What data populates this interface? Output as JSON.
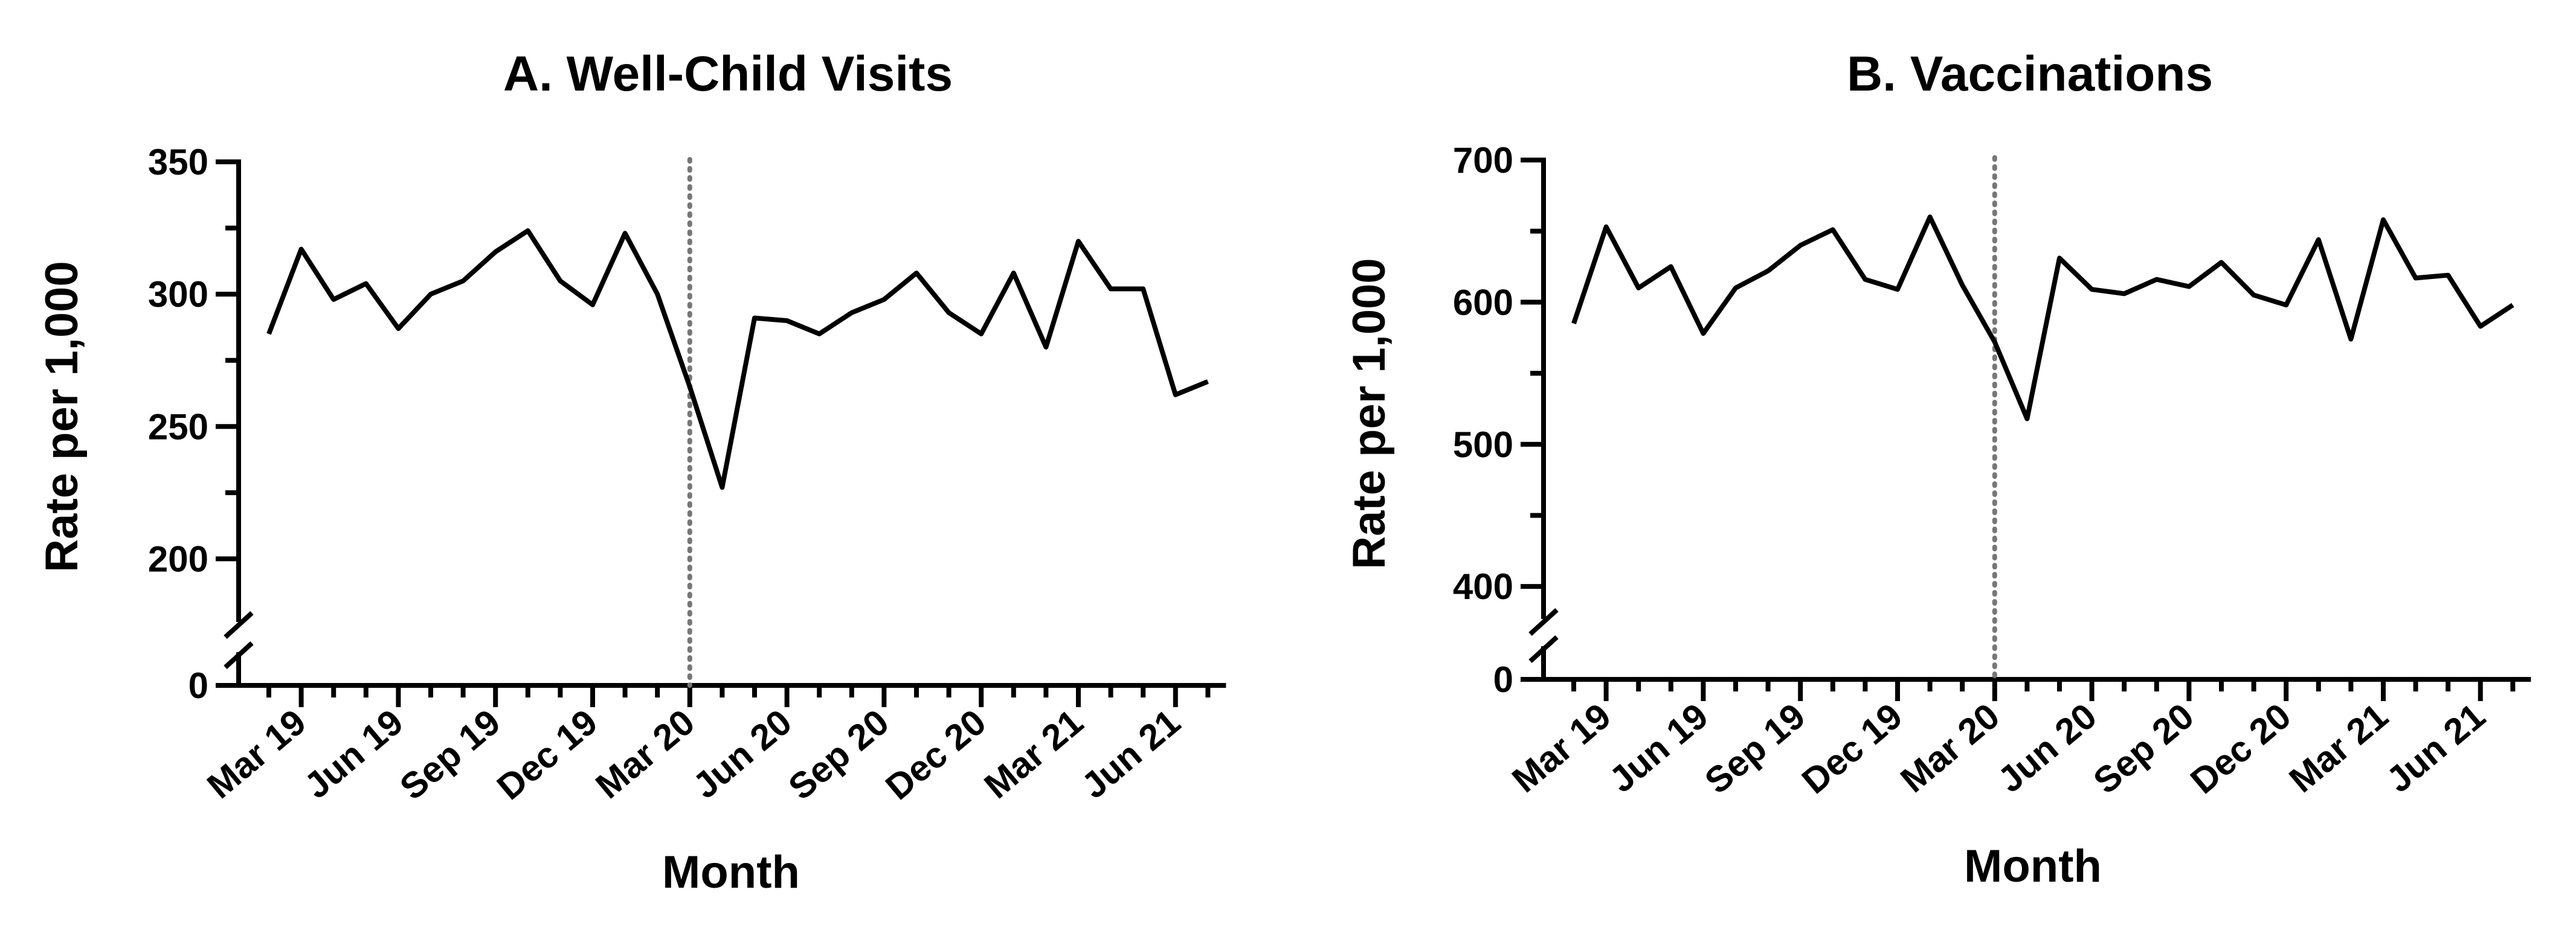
{
  "chart_data": [
    {
      "type": "line",
      "title": "A. Well-Child Visits",
      "xlabel": "Month",
      "ylabel": "Rate per 1,000",
      "ylim": [
        175,
        350
      ],
      "y_break": true,
      "y_ticks": [
        350,
        300,
        250,
        200
      ],
      "y_tick_labels": [
        "350",
        "300",
        "250",
        "200"
      ],
      "y_zero_label": "0",
      "grid": false,
      "x": [
        "Feb 19",
        "Mar 19",
        "Apr 19",
        "May 19",
        "Jun 19",
        "Jul 19",
        "Aug 19",
        "Sep 19",
        "Oct 19",
        "Nov 19",
        "Dec 19",
        "Jan 20",
        "Feb 20",
        "Mar 20",
        "Apr 20",
        "May 20",
        "Jun 20",
        "Jul 20",
        "Aug 20",
        "Sep 20",
        "Oct 20",
        "Nov 20",
        "Dec 20",
        "Jan 21",
        "Feb 21",
        "Mar 21",
        "Apr 21",
        "May 21",
        "Jun 21",
        "Jul 21"
      ],
      "x_tick_labels": [
        "Mar 19",
        "Jun 19",
        "Sep 19",
        "Dec 19",
        "Mar 20",
        "Jun 20",
        "Sep 20",
        "Dec 20",
        "Mar 21",
        "Jun 21"
      ],
      "values": [
        285,
        317,
        298,
        304,
        287,
        300,
        305,
        316,
        324,
        305,
        296,
        323,
        300,
        265,
        227,
        291,
        290,
        285,
        293,
        298,
        308,
        293,
        285,
        308,
        280,
        320,
        302,
        302,
        262,
        267
      ],
      "vertical_marker": "Mar 20"
    },
    {
      "type": "line",
      "title": "B. Vaccinations",
      "xlabel": "Month",
      "ylabel": "Rate per 1,000",
      "ylim": [
        375,
        700
      ],
      "y_break": true,
      "y_ticks": [
        700,
        600,
        500,
        400
      ],
      "y_tick_labels": [
        "700",
        "600",
        "500",
        "400"
      ],
      "y_zero_label": "0",
      "grid": false,
      "x": [
        "Feb 19",
        "Mar 19",
        "Apr 19",
        "May 19",
        "Jun 19",
        "Jul 19",
        "Aug 19",
        "Sep 19",
        "Oct 19",
        "Nov 19",
        "Dec 19",
        "Jan 20",
        "Feb 20",
        "Mar 20",
        "Apr 20",
        "May 20",
        "Jun 20",
        "Jul 20",
        "Aug 20",
        "Sep 20",
        "Oct 20",
        "Nov 20",
        "Dec 20",
        "Jan 21",
        "Feb 21",
        "Mar 21",
        "Apr 21",
        "May 21",
        "Jun 21",
        "Jul 21"
      ],
      "x_tick_labels": [
        "Mar 19",
        "Jun 19",
        "Sep 19",
        "Dec 19",
        "Mar 20",
        "Jun 20",
        "Sep 20",
        "Dec 20",
        "Mar 21",
        "Jun 21"
      ],
      "values": [
        585,
        653,
        610,
        625,
        578,
        610,
        622,
        640,
        651,
        616,
        609,
        660,
        612,
        572,
        518,
        631,
        609,
        606,
        616,
        611,
        628,
        605,
        598,
        644,
        574,
        658,
        617,
        619,
        583,
        598
      ],
      "vertical_marker": "Mar 20"
    }
  ]
}
